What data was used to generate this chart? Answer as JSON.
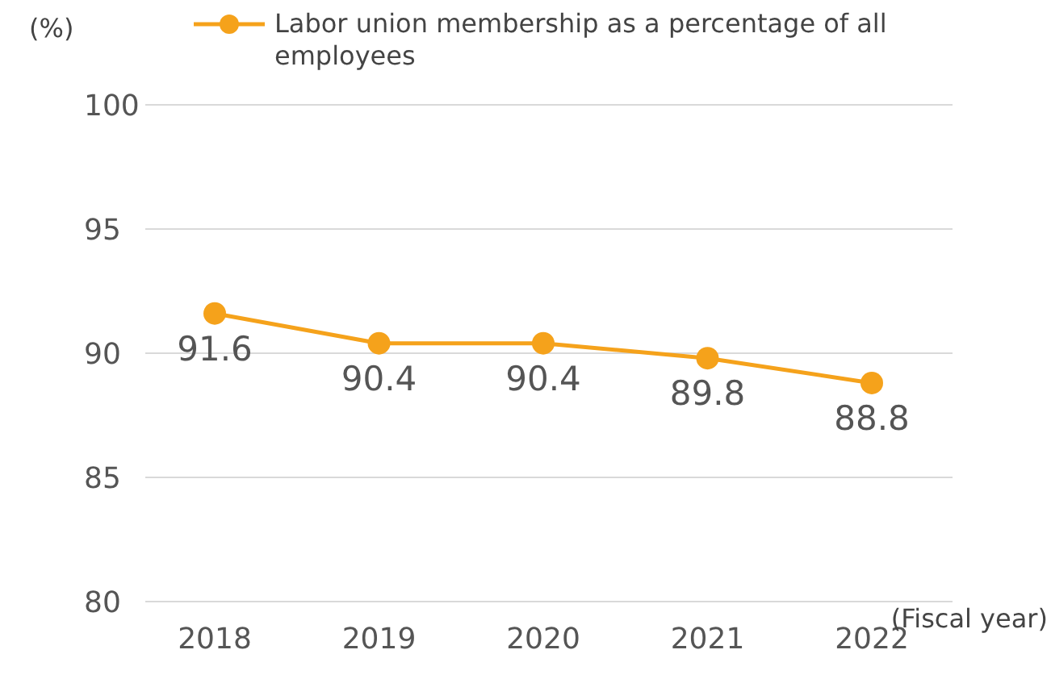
{
  "chart_data": {
    "type": "line",
    "ylabel": "(%)",
    "xlabel": "(Fiscal year)",
    "categories": [
      "2018",
      "2019",
      "2020",
      "2021",
      "2022"
    ],
    "series": [
      {
        "name": "Labor union membership as a percentage of all employees",
        "color": "#f5a21b",
        "values": [
          91.6,
          90.4,
          90.4,
          89.8,
          88.8
        ]
      }
    ],
    "ylim": [
      80,
      100
    ],
    "yticks": [
      80,
      85,
      90,
      95,
      100
    ],
    "grid": "y",
    "legend": "top",
    "marker": "circle",
    "line_style": "solid",
    "data_labels": true
  }
}
